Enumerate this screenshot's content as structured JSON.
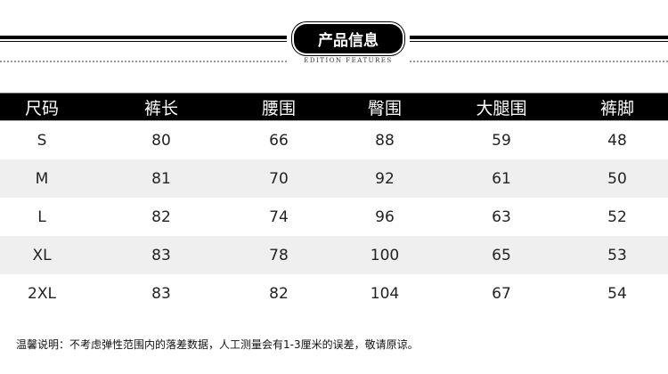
{
  "title": "产品信息",
  "subtitle": "EDITION FEATURES",
  "table": {
    "headers": [
      "尺码",
      "裤长",
      "腰围",
      "臀围",
      "大腿围",
      "裤脚"
    ],
    "rows": [
      [
        "S",
        "80",
        "66",
        "88",
        "59",
        "48"
      ],
      [
        "M",
        "81",
        "70",
        "92",
        "61",
        "50"
      ],
      [
        "L",
        "82",
        "74",
        "96",
        "63",
        "52"
      ],
      [
        "XL",
        "83",
        "78",
        "100",
        "65",
        "53"
      ],
      [
        "2XL",
        "83",
        "82",
        "104",
        "67",
        "54"
      ]
    ]
  },
  "note": "温馨说明：不考虑弹性范围内的落差数据，人工测量会有1-3厘米的误差，敬请原谅。"
}
